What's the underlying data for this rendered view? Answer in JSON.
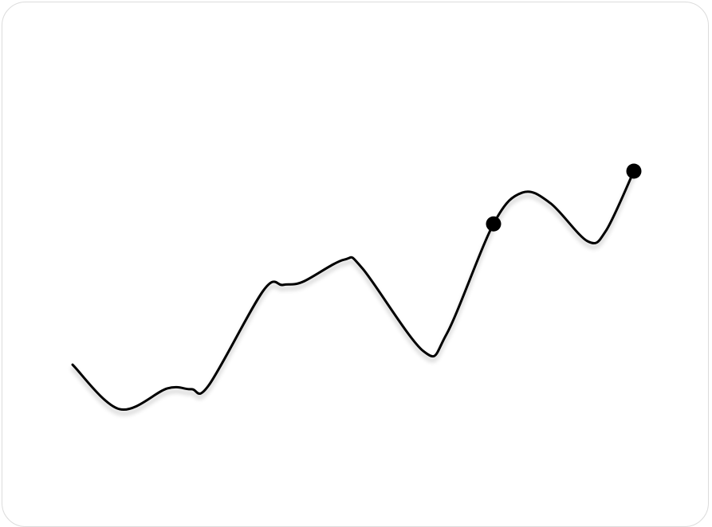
{
  "chart_data": {
    "type": "line",
    "title": "",
    "xlabel": "",
    "ylabel": "",
    "grid": "vertical dashed",
    "xlim": [
      0,
      8
    ],
    "ylim": [
      0,
      100
    ],
    "gridlines_x": [
      0,
      1,
      2,
      3,
      4,
      5,
      6,
      7,
      8
    ],
    "series": [
      {
        "color": "#000000",
        "smooth": true,
        "points": [
          [
            0,
            41.2
          ],
          [
            0.67,
            29.4
          ],
          [
            1.35,
            34.9
          ],
          [
            1.69,
            34.7
          ],
          [
            1.94,
            35.7
          ],
          [
            2.72,
            60.9
          ],
          [
            3,
            62.4
          ],
          [
            3.28,
            63.2
          ],
          [
            3.87,
            69.1
          ],
          [
            4.13,
            66.8
          ],
          [
            5,
            44.8
          ],
          [
            5.33,
            49.3
          ],
          [
            6,
            78.6
          ],
          [
            6.41,
            86.9
          ],
          [
            6.81,
            84.1
          ],
          [
            7.34,
            74.0
          ],
          [
            7.6,
            76.7
          ],
          [
            8,
            92.6
          ]
        ],
        "markers": [
          [
            6,
            78.6
          ],
          [
            8,
            92.6
          ]
        ]
      }
    ]
  },
  "colors": {
    "line": "#000000",
    "grid": "#9a9a9a",
    "border": "#dcdcdc"
  }
}
